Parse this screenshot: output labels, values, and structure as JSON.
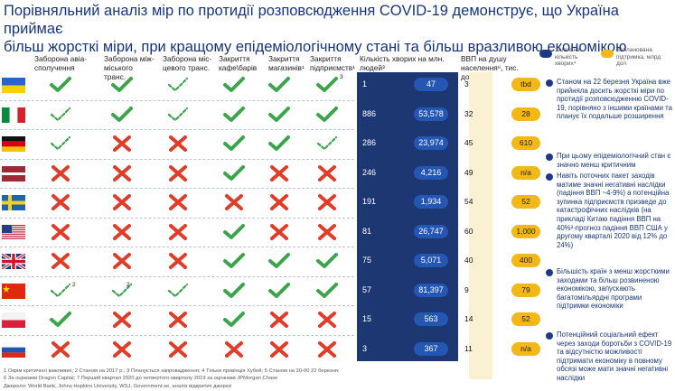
{
  "title_line1": "Порівняльний аналіз мір по протидії розповсюдження COVID-19 демонструє, що Україна приймає",
  "title_line2": "більш жорсткі міри, при кращому епідеміологічному стані та більш вразливою економікою",
  "columns": [
    "Заборона авіа-сполучення",
    "Заборона між-міського транс.",
    "Заборона міс-цевого транс.",
    "Закриття кафе\\барів",
    "Закриття магазинів¹",
    "Закриття підприємств¹"
  ],
  "cases_header": "Кількість хворих на млн. людей³",
  "gdp_header": "ВВП на душу населення⁶, тис. дол",
  "legend": {
    "overall": "Загальна кількість хворих⁴",
    "support": "Запланована підтримка, млрд дол"
  },
  "colors": {
    "check_green": "#3aa54b",
    "cross_red": "#e23b28",
    "navy": "#1d3773",
    "pill_yellow": "#f3b718",
    "text_blue": "#16357e"
  },
  "chart_data": {
    "type": "table",
    "countries": [
      "Ukraine",
      "Italy",
      "Germany",
      "Latvia",
      "Sweden",
      "USA",
      "United Kingdom",
      "China",
      "Poland",
      "Russia"
    ],
    "measure_status": [
      [
        "yes",
        "yes",
        "partial",
        "yes",
        "yes",
        "yes"
      ],
      [
        "partial",
        "yes",
        "partial",
        "yes",
        "yes",
        "yes"
      ],
      [
        "partial",
        "no",
        "no",
        "yes",
        "yes",
        "partial"
      ],
      [
        "no",
        "no",
        "no",
        "yes",
        "no",
        "no"
      ],
      [
        "no",
        "no",
        "no",
        "no",
        "no",
        "no"
      ],
      [
        "no",
        "no",
        "no",
        "yes",
        "no",
        "no"
      ],
      [
        "no",
        "no",
        "no",
        "yes",
        "yes",
        "yes"
      ],
      [
        "partial",
        "partial",
        "partial",
        "yes",
        "yes",
        "yes"
      ],
      [
        "yes",
        "no",
        "no",
        "yes",
        "no",
        "no"
      ],
      [
        "no",
        "no",
        "no",
        "no",
        "no",
        "no"
      ]
    ],
    "measure_marks_footnote": {
      "Ukraine": "3",
      "China": "2"
    },
    "cases_per_million": [
      "1",
      "886",
      "286",
      "246",
      "191",
      "81",
      "75",
      "57",
      "15",
      "3"
    ],
    "total_cases": [
      "47",
      "53,578",
      "23,974",
      "4,216",
      "1,934",
      "26,747",
      "5,071",
      "81,397",
      "563",
      "367"
    ],
    "gdp_per_capita": [
      "3",
      "32",
      "45",
      "49",
      "54",
      "60",
      "40",
      "9",
      "14",
      "11"
    ],
    "support_bn": [
      "tbd",
      "28",
      "610",
      "n/a",
      "52",
      "1,000",
      "400",
      "79",
      "52",
      "n/a"
    ]
  },
  "right_panel": [
    "Станом на 22 березня Україна вже прийняла досить жорсткі міри по протидії розповсюдженню COVID-19, порівняно з іншими країнами та планує їх подальше розширення",
    "При цьому епідеміологічний стан є значно менш критичним",
    "Навіть поточних пакет заходів матиме значні негативні наслідки (падіння ВВП ~4-9%) а потенційна зупинка підприємств призведе до катастрофічних наслідків (на прикладі Китаю падіння ВВП на 40%²-прогноз падіння ВВП США у другому кварталі 2020 від 12% до 24%)",
    "Більшість країн з менш жорсткими заходами та більш розвиненою економікою, запускають багатомільярдні програми підтримки економіки",
    "Потенційний соціальний ефект через заходи боротьби з COVID-19 та відсутністю можливості підтримати економіку в повному обсязі може мати значні негативні наслідки"
  ],
  "footnotes": [
    "1 Окрім критичної важливих; 2 Станом на 2017 р.; 3 Планується запровадження; 4 Тільки провінція Хубей; 5 Станом на 20-00 22 березня;",
    "6 За оцінками Dragon Capital; 7 Перший квартал 2020 до четвертого кварталу 2019 за оцінками JPMorgan Chase",
    "Джерело: World Bank, Johns Hopkins University, WSJ, Government.se, аналіз відкритих джерел"
  ]
}
